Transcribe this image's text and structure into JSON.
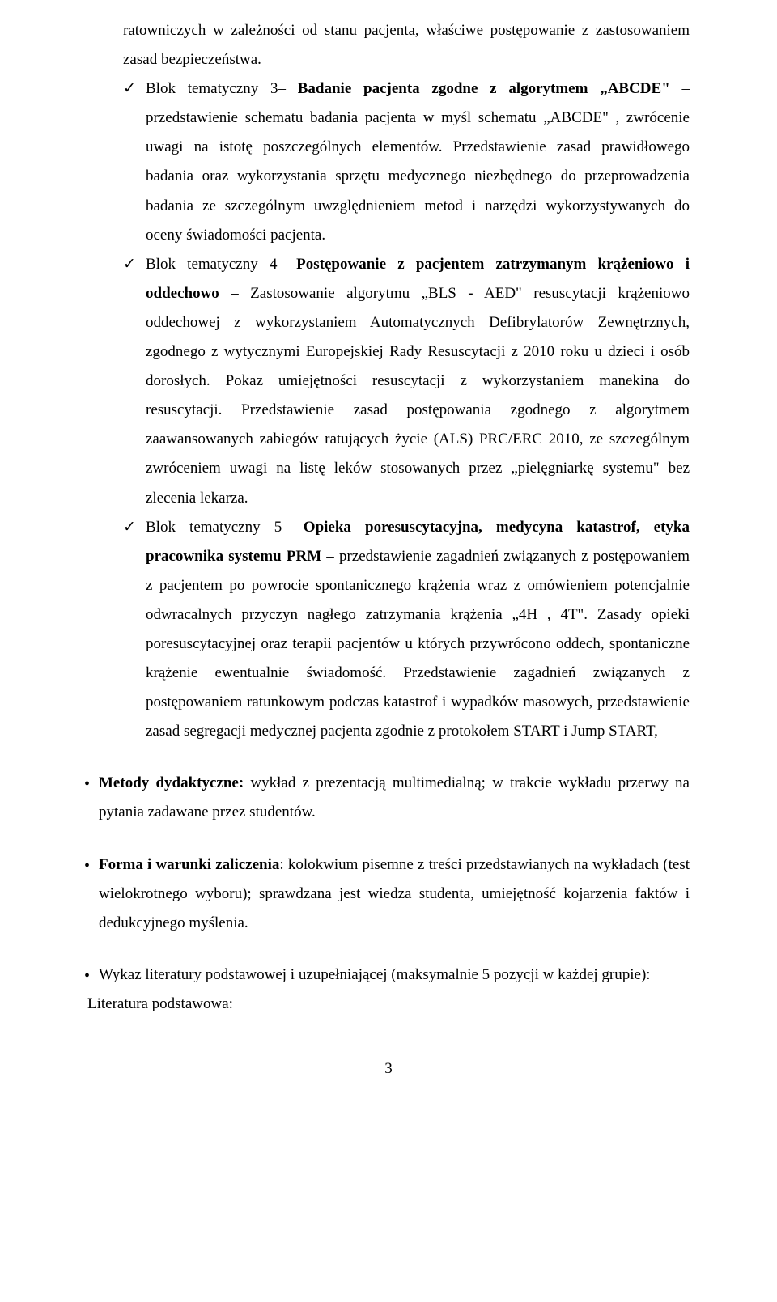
{
  "lead_fragment": "ratowniczych w zależności od stanu pacjenta, właściwe postępowanie z zastosowaniem zasad bezpieczeństwa.",
  "blocks": [
    {
      "prefix": "Blok tematyczny 3– ",
      "bold": "Badanie pacjenta zgodne z algorytmem „ABCDE\"",
      "rest": " – przedstawienie schematu badania pacjenta w myśl schematu „ABCDE\" , zwrócenie uwagi na istotę poszczególnych elementów. Przedstawienie zasad prawidłowego badania oraz wykorzystania sprzętu medycznego niezbędnego do przeprowadzenia badania ze szczególnym uwzględnieniem metod i narzędzi wykorzystywanych do oceny świadomości pacjenta."
    },
    {
      "prefix": "Blok tematyczny 4– ",
      "bold": "Postępowanie z pacjentem zatrzymanym krążeniowo i oddechowo",
      "rest": " – Zastosowanie algorytmu „BLS - AED\" resuscytacji krążeniowo oddechowej z wykorzystaniem Automatycznych Defibrylatorów Zewnętrznych, zgodnego z wytycznymi Europejskiej Rady Resuscytacji z 2010 roku u dzieci i osób dorosłych. Pokaz umiejętności resuscytacji z wykorzystaniem manekina do resuscytacji. Przedstawienie zasad postępowania zgodnego z algorytmem zaawansowanych zabiegów ratujących życie (ALS) PRC/ERC 2010, ze szczególnym zwróceniem uwagi na listę leków stosowanych przez „pielęgniarkę systemu\" bez zlecenia lekarza."
    },
    {
      "prefix": "Blok tematyczny 5– ",
      "bold": "Opieka poresuscytacyjna, medycyna katastrof, etyka pracownika systemu PRM",
      "rest": " – przedstawienie zagadnień związanych z postępowaniem z pacjentem po powrocie spontanicznego krążenia wraz z omówieniem potencjalnie odwracalnych przyczyn nagłego zatrzymania krążenia „4H , 4T\". Zasady opieki poresuscytacyjnej oraz terapii pacjentów u których przywrócono oddech, spontaniczne krążenie ewentualnie świadomość. Przedstawienie zagadnień związanych z postępowaniem ratunkowym podczas katastrof i wypadków masowych, przedstawienie zasad segregacji medycznej pacjenta zgodnie z protokołem START i Jump START,"
    }
  ],
  "bullets": [
    {
      "bold": "Metody dydaktyczne:",
      "rest": " wykład z prezentacją multimedialną; w trakcie wykładu przerwy na pytania zadawane przez studentów."
    },
    {
      "bold": "Forma i warunki zaliczenia",
      "rest": ": kolokwium  pisemne z treści przedstawianych na wykładach (test wielokrotnego wyboru); sprawdzana jest wiedza studenta, umiejętność kojarzenia faktów i dedukcyjnego myślenia."
    },
    {
      "bold": "",
      "rest": "Wykaz literatury podstawowej i uzupełniającej (maksymalnie 5 pozycji w każdej grupie):"
    }
  ],
  "tail_line": "Literatura podstawowa:",
  "check_glyph": "✓",
  "bullet_glyph": "•",
  "page_number": "3"
}
